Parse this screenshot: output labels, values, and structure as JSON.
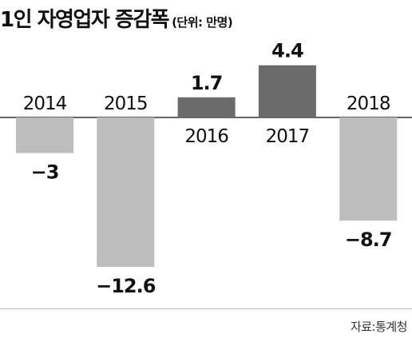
{
  "title": "1인 자영업자 증감폭",
  "unit": "(단위: 만명)",
  "source": "자료:통계청",
  "colors": {
    "negative": "#bdbdbd",
    "positive": "#6b6b6b",
    "baseline": "#333333",
    "text": "#111111"
  },
  "chart_data": {
    "type": "bar",
    "title": "1인 자영업자 증감폭",
    "categories": [
      "2014",
      "2015",
      "2016",
      "2017",
      "2018"
    ],
    "values": [
      -3,
      -12.6,
      1.7,
      4.4,
      -8.7
    ],
    "value_labels": [
      "−3",
      "−12.6",
      "1.7",
      "4.4",
      "−8.7"
    ],
    "unit": "만명",
    "xlabel": "",
    "ylabel": "",
    "grid": false,
    "legend": "none"
  }
}
